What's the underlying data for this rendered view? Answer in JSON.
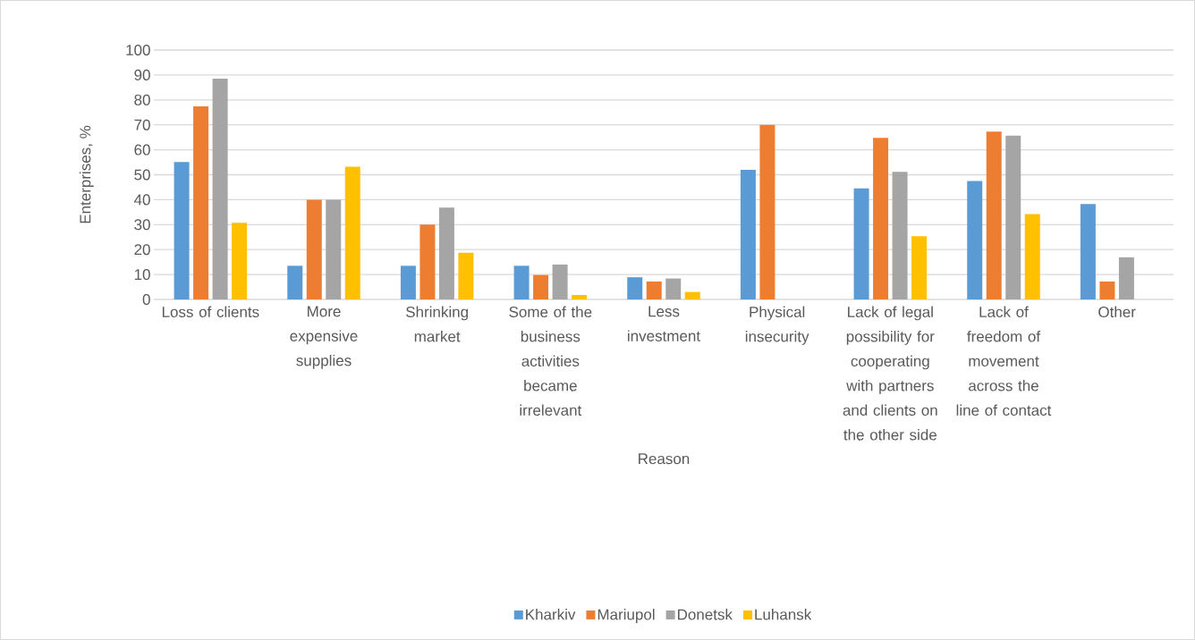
{
  "chart_data": {
    "type": "bar",
    "xlabel": "Reason",
    "ylabel": "Enterprises, %",
    "categories": [
      "Loss of clients",
      "More expensive supplies",
      "Shrinking market",
      "Some of the business activities became irrelevant",
      "Less investment",
      "Physical insecurity",
      "Lack of legal possibility for cooperating with partners and clients on the other side",
      "Lack of freedom of movement across the line of contact",
      "Other"
    ],
    "series": [
      {
        "name": "Kharkiv",
        "color": "#5b9bd5",
        "values": [
          55.1,
          13.5,
          13.5,
          13.5,
          8.9,
          52.0,
          44.5,
          47.5,
          38.3
        ]
      },
      {
        "name": "Mariupol",
        "color": "#ed7d31",
        "values": [
          77.4,
          40,
          30,
          9.8,
          7.2,
          70,
          64.8,
          67.3,
          7.2
        ]
      },
      {
        "name": "Donetsk",
        "color": "#a5a5a5",
        "values": [
          88.5,
          40,
          36.8,
          14.0,
          8.4,
          null,
          51.2,
          65.7,
          16.9
        ]
      },
      {
        "name": "Luhansk",
        "color": "#ffc000",
        "values": [
          30.7,
          53.2,
          18.7,
          1.8,
          3.0,
          null,
          25.4,
          34.2,
          null
        ]
      }
    ],
    "ylim": [
      0,
      100
    ],
    "yticks": [
      0,
      10,
      20,
      30,
      40,
      50,
      60,
      70,
      80,
      90,
      100
    ],
    "grid": "y",
    "legend": "bottom"
  }
}
